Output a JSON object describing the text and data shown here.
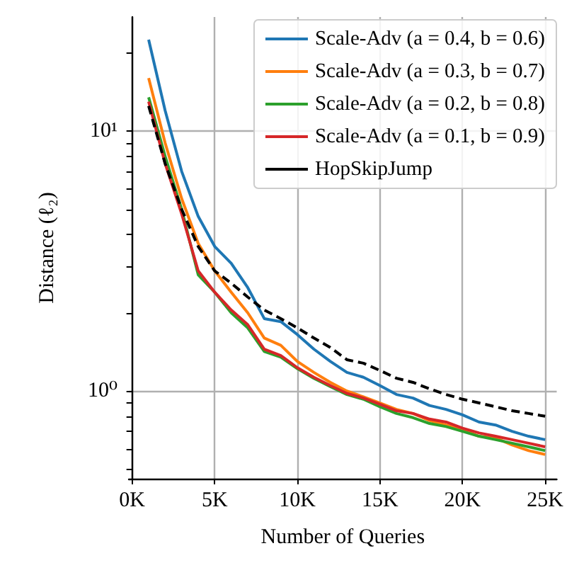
{
  "chart_data": {
    "type": "line",
    "xlabel": "Number of Queries",
    "ylabel": "Distance (ℓ₂)",
    "x": [
      1000,
      2000,
      3000,
      4000,
      5000,
      6000,
      7000,
      8000,
      9000,
      10000,
      11000,
      12000,
      13000,
      14000,
      15000,
      16000,
      17000,
      18000,
      19000,
      20000,
      21000,
      22000,
      23000,
      24000,
      25000
    ],
    "series": [
      {
        "name": "Scale-Adv (a = 0.4, b = 0.6)",
        "color": "#1f77b4",
        "values": [
          22.5,
          12,
          7,
          4.7,
          3.6,
          3.1,
          2.5,
          1.9,
          1.85,
          1.65,
          1.45,
          1.3,
          1.18,
          1.13,
          1.05,
          0.97,
          0.94,
          0.88,
          0.85,
          0.81,
          0.76,
          0.74,
          0.7,
          0.67,
          0.65
        ]
      },
      {
        "name": "Scale-Adv (a = 0.3, b = 0.7)",
        "color": "#ff7f0e",
        "values": [
          16,
          9,
          5.5,
          3.7,
          2.9,
          2.4,
          2.0,
          1.6,
          1.5,
          1.3,
          1.18,
          1.08,
          1.0,
          0.95,
          0.9,
          0.85,
          0.82,
          0.77,
          0.74,
          0.71,
          0.67,
          0.66,
          0.62,
          0.59,
          0.57
        ]
      },
      {
        "name": "Scale-Adv (a = 0.2, b = 0.8)",
        "color": "#2ca02c",
        "values": [
          13.5,
          8,
          5,
          2.8,
          2.4,
          2.0,
          1.75,
          1.42,
          1.35,
          1.22,
          1.12,
          1.04,
          0.97,
          0.93,
          0.87,
          0.82,
          0.79,
          0.75,
          0.73,
          0.7,
          0.67,
          0.65,
          0.63,
          0.61,
          0.59
        ]
      },
      {
        "name": "Scale-Adv (a = 0.1, b = 0.9)",
        "color": "#d62728",
        "values": [
          13,
          7.5,
          4.8,
          2.9,
          2.4,
          2.05,
          1.8,
          1.45,
          1.37,
          1.23,
          1.13,
          1.05,
          0.98,
          0.94,
          0.89,
          0.84,
          0.82,
          0.78,
          0.76,
          0.72,
          0.69,
          0.67,
          0.65,
          0.63,
          0.61
        ]
      },
      {
        "name": "HopSkipJump",
        "color": "#000000",
        "line_style": "dashed",
        "values": [
          12.5,
          7.5,
          5,
          3.6,
          2.9,
          2.6,
          2.3,
          2.05,
          1.9,
          1.75,
          1.6,
          1.47,
          1.32,
          1.28,
          1.2,
          1.12,
          1.08,
          1.02,
          0.97,
          0.93,
          0.9,
          0.87,
          0.84,
          0.82,
          0.8
        ]
      }
    ],
    "xlim": [
      -200,
      25700
    ],
    "xticks": [
      {
        "value": 0,
        "label": "0K"
      },
      {
        "value": 5000,
        "label": "5K"
      },
      {
        "value": 10000,
        "label": "10K"
      },
      {
        "value": 15000,
        "label": "15K"
      },
      {
        "value": 20000,
        "label": "20K"
      },
      {
        "value": 25000,
        "label": "25K"
      }
    ],
    "ylim": [
      0.46,
      27.5
    ],
    "yticks": [
      {
        "value": 0.5,
        "label": null
      },
      {
        "value": 0.6,
        "label": null
      },
      {
        "value": 0.7,
        "label": null
      },
      {
        "value": 0.8,
        "label": null
      },
      {
        "value": 0.9,
        "label": null
      },
      {
        "value": 1,
        "label": "10⁰"
      },
      {
        "value": 2,
        "label": null
      },
      {
        "value": 3,
        "label": null
      },
      {
        "value": 4,
        "label": null
      },
      {
        "value": 5,
        "label": null
      },
      {
        "value": 6,
        "label": null
      },
      {
        "value": 7,
        "label": null
      },
      {
        "value": 8,
        "label": null
      },
      {
        "value": 9,
        "label": null
      },
      {
        "value": 10,
        "label": "10¹"
      },
      {
        "value": 20,
        "label": null
      }
    ],
    "log": true,
    "grid": true,
    "legend": "top right",
    "marker": "none",
    "line_style": "solid"
  }
}
